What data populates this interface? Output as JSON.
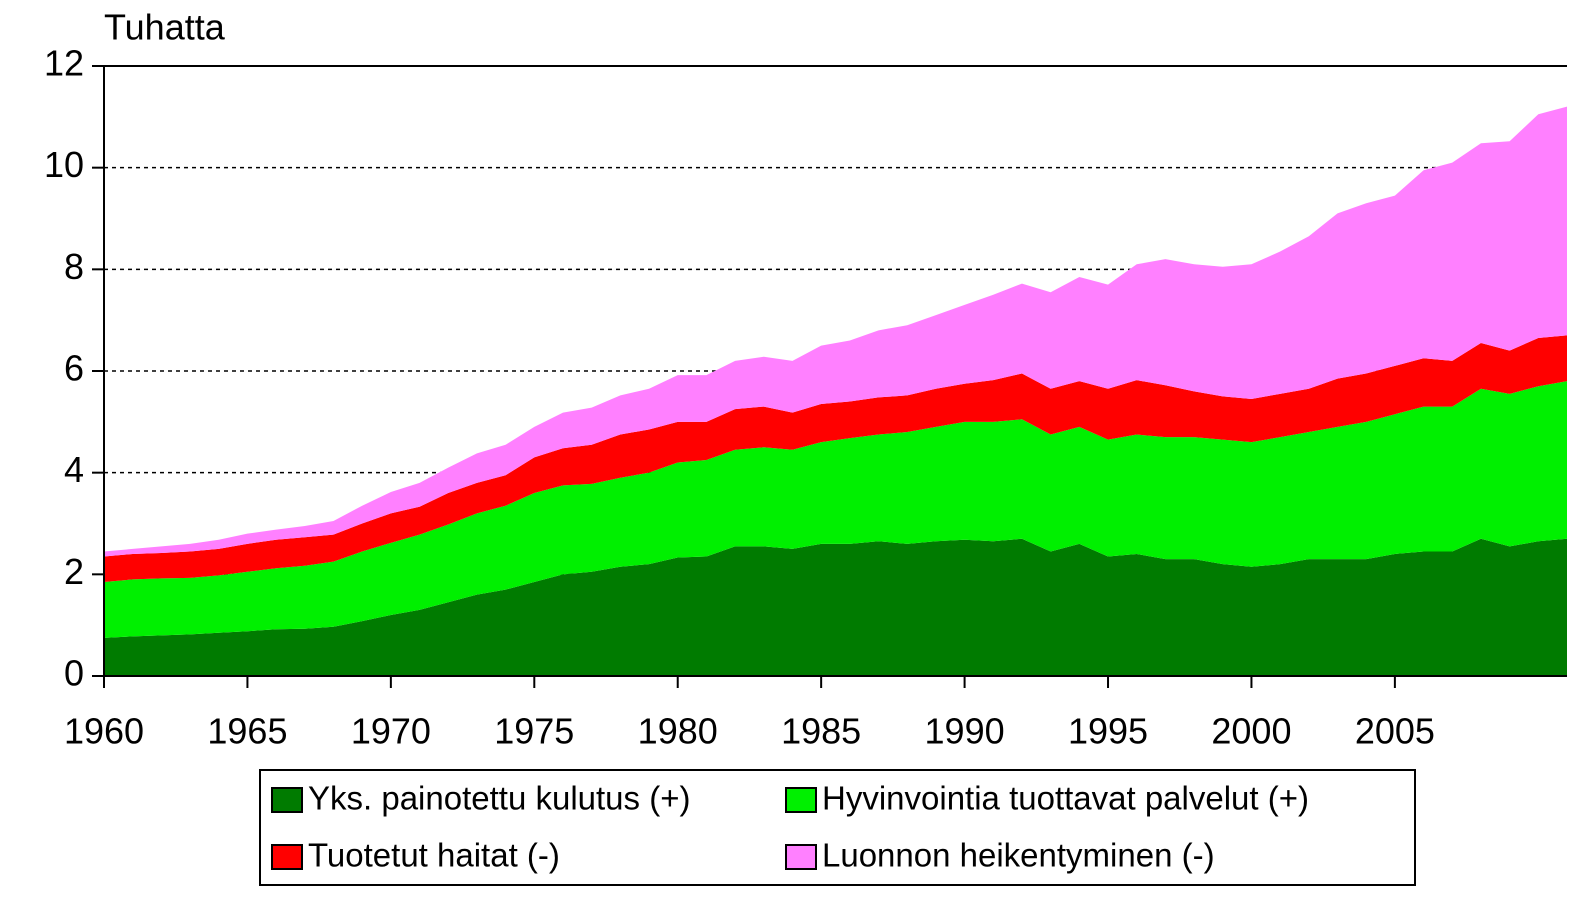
{
  "chart_data": {
    "type": "stacked_area",
    "y_label": "Tuhatta",
    "x": [
      1960,
      1961,
      1962,
      1963,
      1964,
      1965,
      1966,
      1967,
      1968,
      1969,
      1970,
      1971,
      1972,
      1973,
      1974,
      1975,
      1976,
      1977,
      1978,
      1979,
      1980,
      1981,
      1982,
      1983,
      1984,
      1985,
      1986,
      1987,
      1988,
      1989,
      1990,
      1991,
      1992,
      1993,
      1994,
      1995,
      1996,
      1997,
      1998,
      1999,
      2000,
      2001,
      2002,
      2003,
      2004,
      2005,
      2006,
      2007,
      2008,
      2009,
      2010,
      2011
    ],
    "series": [
      {
        "name": "Yks. painotettu kulutus (+)",
        "color": "#007b00",
        "values": [
          0.75,
          0.78,
          0.8,
          0.82,
          0.85,
          0.88,
          0.92,
          0.93,
          0.97,
          1.08,
          1.2,
          1.3,
          1.45,
          1.6,
          1.7,
          1.85,
          2.0,
          2.05,
          2.15,
          2.2,
          2.33,
          2.35,
          2.55,
          2.55,
          2.5,
          2.6,
          2.6,
          2.65,
          2.6,
          2.65,
          2.68,
          2.65,
          2.7,
          2.45,
          2.6,
          2.35,
          2.4,
          2.3,
          2.3,
          2.2,
          2.15,
          2.2,
          2.3,
          2.3,
          2.3,
          2.4,
          2.45,
          2.45,
          2.7,
          2.55,
          2.65,
          2.7
        ]
      },
      {
        "name": "Hyvinvointia tuottavat palvelut (+)",
        "color": "#00f000",
        "values": [
          1.1,
          1.12,
          1.12,
          1.11,
          1.13,
          1.17,
          1.2,
          1.24,
          1.28,
          1.37,
          1.42,
          1.48,
          1.53,
          1.6,
          1.65,
          1.75,
          1.75,
          1.73,
          1.75,
          1.8,
          1.87,
          1.9,
          1.9,
          1.95,
          1.95,
          2.0,
          2.08,
          2.1,
          2.2,
          2.25,
          2.32,
          2.35,
          2.35,
          2.3,
          2.3,
          2.3,
          2.35,
          2.4,
          2.4,
          2.45,
          2.45,
          2.5,
          2.5,
          2.6,
          2.7,
          2.75,
          2.85,
          2.85,
          2.95,
          3.0,
          3.05,
          3.1
        ]
      },
      {
        "name": "Tuotetut haitat (-)",
        "color": "#ff0000",
        "values": [
          0.5,
          0.5,
          0.5,
          0.52,
          0.52,
          0.55,
          0.56,
          0.56,
          0.53,
          0.55,
          0.58,
          0.55,
          0.62,
          0.6,
          0.6,
          0.7,
          0.73,
          0.77,
          0.85,
          0.85,
          0.8,
          0.75,
          0.8,
          0.8,
          0.73,
          0.75,
          0.72,
          0.73,
          0.72,
          0.75,
          0.75,
          0.82,
          0.9,
          0.9,
          0.9,
          1.0,
          1.07,
          1.02,
          0.9,
          0.85,
          0.85,
          0.85,
          0.85,
          0.95,
          0.95,
          0.95,
          0.95,
          0.9,
          0.9,
          0.85,
          0.95,
          0.9
        ]
      },
      {
        "name": "Luonnon heikentyminen (-)",
        "color": "#ff80ff",
        "values": [
          0.1,
          0.1,
          0.13,
          0.15,
          0.18,
          0.2,
          0.2,
          0.22,
          0.27,
          0.35,
          0.42,
          0.47,
          0.5,
          0.58,
          0.6,
          0.6,
          0.7,
          0.73,
          0.77,
          0.8,
          0.92,
          0.92,
          0.95,
          0.98,
          1.02,
          1.15,
          1.2,
          1.32,
          1.38,
          1.45,
          1.55,
          1.68,
          1.77,
          1.9,
          2.05,
          2.05,
          2.28,
          2.48,
          2.5,
          2.55,
          2.65,
          2.8,
          3.0,
          3.25,
          3.35,
          3.35,
          3.7,
          3.9,
          3.93,
          4.12,
          4.4,
          4.5
        ]
      }
    ],
    "xlim": [
      1960,
      2011
    ],
    "xticks": [
      1960,
      1965,
      1970,
      1975,
      1980,
      1985,
      1990,
      1995,
      2000,
      2005
    ],
    "ylim": [
      0,
      12
    ],
    "yticks": [
      0,
      2,
      4,
      6,
      8,
      10,
      12
    ],
    "grid": true
  }
}
